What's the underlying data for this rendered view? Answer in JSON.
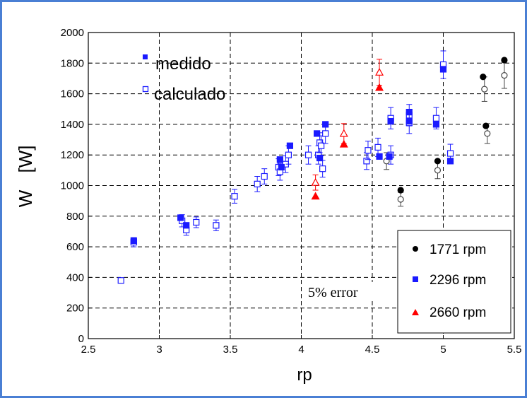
{
  "chart_data": {
    "type": "scatter",
    "title": "",
    "xlabel": "rp",
    "ylabel_parts": {
      "symbol": "W",
      "unit": "[W]"
    },
    "xlim": [
      2.5,
      5.5
    ],
    "ylim": [
      0,
      2000
    ],
    "xticks": [
      "2.5",
      "3",
      "3.5",
      "4",
      "4.5",
      "5",
      "5.5"
    ],
    "yticks": [
      "0",
      "200",
      "400",
      "600",
      "800",
      "1000",
      "1200",
      "1400",
      "1600",
      "1800",
      "2000"
    ],
    "grid": true,
    "marker_legend": [
      {
        "label": "medido",
        "marker": "filled-square"
      },
      {
        "label": "calculado",
        "marker": "open-square"
      }
    ],
    "annotation": "5% error",
    "series": [
      {
        "name": "1771 rpm",
        "color": "#000000",
        "marker": "circle",
        "measured": [
          {
            "x": 4.7,
            "y": 970
          },
          {
            "x": 4.96,
            "y": 1160
          },
          {
            "x": 5.28,
            "y": 1710
          },
          {
            "x": 5.3,
            "y": 1390
          },
          {
            "x": 5.43,
            "y": 1820
          }
        ],
        "calculated": [
          {
            "x": 4.7,
            "y": 910,
            "err": 45
          },
          {
            "x": 4.6,
            "y": 1160,
            "err": 55
          },
          {
            "x": 4.96,
            "y": 1100,
            "err": 55
          },
          {
            "x": 5.29,
            "y": 1630,
            "err": 80
          },
          {
            "x": 5.31,
            "y": 1340,
            "err": 65
          },
          {
            "x": 5.43,
            "y": 1720,
            "err": 85
          }
        ]
      },
      {
        "name": "2296 rpm",
        "color": "#1a1aff",
        "marker": "square",
        "measured": [
          {
            "x": 2.82,
            "y": 640
          },
          {
            "x": 3.15,
            "y": 790
          },
          {
            "x": 3.19,
            "y": 740
          },
          {
            "x": 3.85,
            "y": 1170
          },
          {
            "x": 3.86,
            "y": 1120
          },
          {
            "x": 3.92,
            "y": 1260
          },
          {
            "x": 4.11,
            "y": 1340
          },
          {
            "x": 4.13,
            "y": 1180
          },
          {
            "x": 4.17,
            "y": 1400
          },
          {
            "x": 4.55,
            "y": 1190
          },
          {
            "x": 4.62,
            "y": 1190
          },
          {
            "x": 4.63,
            "y": 1420
          },
          {
            "x": 4.76,
            "y": 1420
          },
          {
            "x": 4.76,
            "y": 1480
          },
          {
            "x": 4.95,
            "y": 1400
          },
          {
            "x": 5.0,
            "y": 1760
          },
          {
            "x": 5.05,
            "y": 1160
          }
        ],
        "calculated": [
          {
            "x": 2.73,
            "y": 380,
            "err": 0
          },
          {
            "x": 2.82,
            "y": 630,
            "err": 30
          },
          {
            "x": 3.16,
            "y": 770,
            "err": 40
          },
          {
            "x": 3.19,
            "y": 710,
            "err": 35
          },
          {
            "x": 3.26,
            "y": 760,
            "err": 35
          },
          {
            "x": 3.4,
            "y": 740,
            "err": 35
          },
          {
            "x": 3.53,
            "y": 930,
            "err": 45
          },
          {
            "x": 3.69,
            "y": 1010,
            "err": 50
          },
          {
            "x": 3.74,
            "y": 1060,
            "err": 50
          },
          {
            "x": 3.84,
            "y": 1120,
            "err": 55
          },
          {
            "x": 3.85,
            "y": 1090,
            "err": 55
          },
          {
            "x": 3.89,
            "y": 1140,
            "err": 55
          },
          {
            "x": 3.91,
            "y": 1200,
            "err": 60
          },
          {
            "x": 4.05,
            "y": 1200,
            "err": 60
          },
          {
            "x": 4.12,
            "y": 1200,
            "err": 60
          },
          {
            "x": 4.13,
            "y": 1280,
            "err": 65
          },
          {
            "x": 4.14,
            "y": 1260,
            "err": 65
          },
          {
            "x": 4.15,
            "y": 1110,
            "err": 55
          },
          {
            "x": 4.17,
            "y": 1340,
            "err": 65
          },
          {
            "x": 4.46,
            "y": 1160,
            "err": 55
          },
          {
            "x": 4.47,
            "y": 1230,
            "err": 60
          },
          {
            "x": 4.54,
            "y": 1250,
            "err": 60
          },
          {
            "x": 4.63,
            "y": 1440,
            "err": 70
          },
          {
            "x": 4.63,
            "y": 1200,
            "err": 60
          },
          {
            "x": 4.76,
            "y": 1460,
            "err": 70
          },
          {
            "x": 4.76,
            "y": 1410,
            "err": 70
          },
          {
            "x": 4.95,
            "y": 1440,
            "err": 70
          },
          {
            "x": 5.0,
            "y": 1790,
            "err": 90
          },
          {
            "x": 5.05,
            "y": 1210,
            "err": 60
          }
        ]
      },
      {
        "name": "2660 rpm",
        "color": "#ff0000",
        "marker": "triangle",
        "measured": [
          {
            "x": 4.1,
            "y": 930
          },
          {
            "x": 4.3,
            "y": 1270
          },
          {
            "x": 4.55,
            "y": 1640
          }
        ],
        "calculated": [
          {
            "x": 4.1,
            "y": 1020,
            "err": 50
          },
          {
            "x": 4.3,
            "y": 1340,
            "err": 65
          },
          {
            "x": 4.55,
            "y": 1740,
            "err": 85
          }
        ]
      }
    ]
  }
}
